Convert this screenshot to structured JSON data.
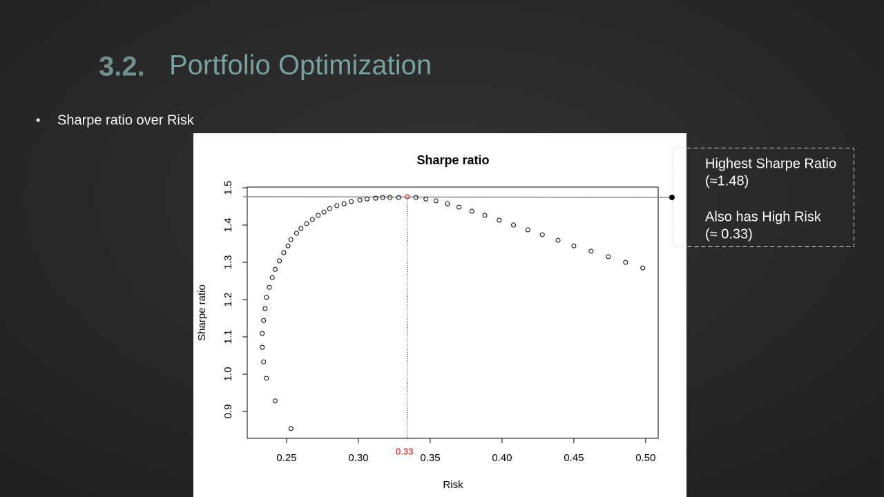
{
  "slide": {
    "number": "3.2.",
    "title": "Portfolio Optimization",
    "bullets": [
      "Sharpe ratio over Risk"
    ]
  },
  "callout": {
    "paragraphs": [
      [
        "Highest Sharpe Ratio",
        "(≈1.48)"
      ],
      [
        "Also has High Risk",
        "(≈ 0.33)"
      ]
    ]
  },
  "chart_data": {
    "type": "scatter",
    "title": "Sharpe ratio",
    "xlabel": "Risk",
    "ylabel": "Sharpe ratio",
    "xlim": [
      0.2226,
      0.5087
    ],
    "ylim": [
      0.8278,
      1.5019
    ],
    "xticks": [
      0.25,
      {
        "value": 0.3,
        "label": "0.30"
      },
      0.35,
      {
        "value": 0.4,
        "label": "0.40"
      },
      0.45,
      {
        "value": 0.5,
        "label": "0.50"
      }
    ],
    "yticks": [
      0.9,
      {
        "value": 1.0,
        "label": "1.0"
      },
      1.1,
      1.2,
      1.3,
      1.4,
      1.5
    ],
    "highlight_label": "0.33",
    "highlight_color": "#cc0000",
    "series": [
      {
        "color": "#000000",
        "x": [
          0.253,
          0.242,
          0.236,
          0.234,
          0.233,
          0.233,
          0.234,
          0.235,
          0.236,
          0.238,
          0.24,
          0.242,
          0.245,
          0.248,
          0.251,
          0.253,
          0.257,
          0.26,
          0.264,
          0.268,
          0.272,
          0.276,
          0.28,
          0.285,
          0.29,
          0.295,
          0.301,
          0.306,
          0.312,
          0.317,
          0.322,
          0.328,
          0.34,
          0.347,
          0.354,
          0.362,
          0.37,
          0.379,
          0.388,
          0.398,
          0.408,
          0.418,
          0.428,
          0.439,
          0.45,
          0.462,
          0.474,
          0.486,
          0.498
        ],
        "values": [
          0.854,
          0.928,
          0.989,
          1.033,
          1.072,
          1.109,
          1.144,
          1.176,
          1.206,
          1.233,
          1.259,
          1.281,
          1.304,
          1.326,
          1.344,
          1.361,
          1.378,
          1.391,
          1.404,
          1.415,
          1.426,
          1.435,
          1.444,
          1.452,
          1.457,
          1.463,
          1.467,
          1.47,
          1.472,
          1.474,
          1.474,
          1.474,
          1.474,
          1.47,
          1.465,
          1.457,
          1.448,
          1.437,
          1.426,
          1.413,
          1.4,
          1.387,
          1.374,
          1.359,
          1.344,
          1.33,
          1.315,
          1.3,
          1.285
        ]
      },
      {
        "color": "#cc0000",
        "x": [
          0.334
        ],
        "values": [
          1.476
        ]
      }
    ]
  }
}
